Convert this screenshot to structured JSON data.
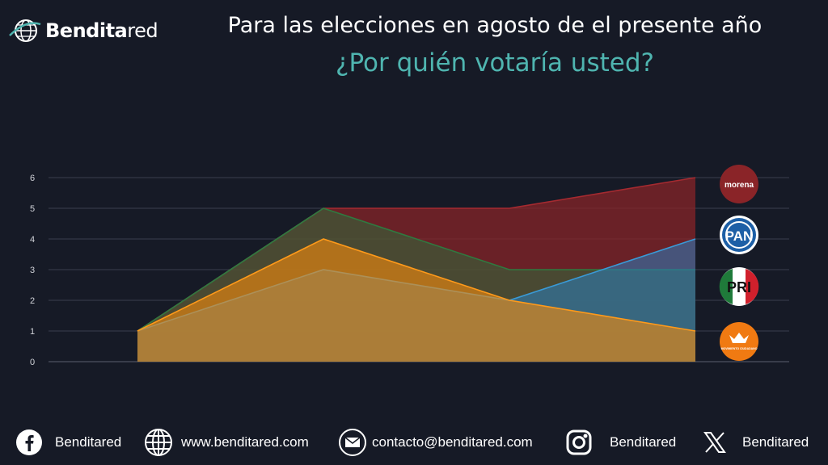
{
  "brand": {
    "name_bold": "Bendita",
    "name_light": "red"
  },
  "header": {
    "title": "Para las elecciones en agosto de el presente año",
    "subtitle": "¿Por quién votaría usted?"
  },
  "colors": {
    "background": "#161a26",
    "subtitle": "#4fb5b0",
    "morena": "#8a2428",
    "pan": "#2a7fc0",
    "pri": "#2e6b3c",
    "mc": "#f28a0d"
  },
  "parties": [
    {
      "key": "morena",
      "label": "morena",
      "icon": "morena-logo"
    },
    {
      "key": "pan",
      "label": "PAN",
      "icon": "pan-logo"
    },
    {
      "key": "pri",
      "label": "PRI",
      "icon": "pri-logo"
    },
    {
      "key": "mc",
      "label": "MOVIMIENTO CIUDADANO",
      "icon": "movimiento-ciudadano-logo"
    }
  ],
  "chart_data": {
    "type": "area",
    "x": [
      1,
      2,
      3,
      4
    ],
    "yticks": [
      0,
      1,
      2,
      3,
      4,
      5,
      6
    ],
    "ylim": [
      0,
      6
    ],
    "grid": true,
    "legend": "right",
    "series": [
      {
        "key": "morena",
        "values": [
          1,
          5,
          5,
          6
        ]
      },
      {
        "key": "pri",
        "values": [
          1,
          5,
          3,
          3
        ]
      },
      {
        "key": "pan",
        "values": [
          1,
          3,
          2,
          4
        ]
      },
      {
        "key": "mc",
        "values": [
          1,
          4,
          2,
          1
        ]
      }
    ]
  },
  "footer": {
    "facebook": "Benditared",
    "website": "www.benditared.com",
    "email": "contacto@benditared.com",
    "instagram": "Benditared",
    "x": "Benditared"
  }
}
